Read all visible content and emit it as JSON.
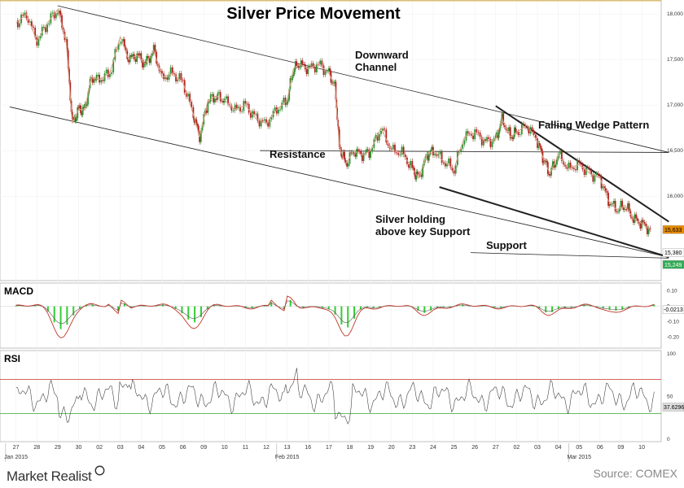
{
  "chart_data": {
    "type": "line",
    "title": "Silver Price Movement",
    "source": "Source: COMEX",
    "brand": "Market Realist",
    "colors": {
      "price": "#8a4a3a",
      "ma": "#d8a080",
      "candle_up": "#2f8f2f",
      "candle_down": "#b22222",
      "macd_line": "#c0392b",
      "macd_signal": "#555555",
      "macd_hist": "#33cc33",
      "rsi_line": "#444444",
      "rsi_upper": "#cc3333",
      "rsi_lower": "#33aa33",
      "price_tag": "#e68a00",
      "support_tag": "#33aa55"
    },
    "x_labels": [
      "27",
      "28",
      "29",
      "30",
      "02",
      "03",
      "04",
      "05",
      "06",
      "09",
      "10",
      "11",
      "12",
      "13",
      "16",
      "17",
      "18",
      "19",
      "20",
      "23",
      "24",
      "25",
      "26",
      "27",
      "02",
      "03",
      "04",
      "05",
      "06",
      "09",
      "10"
    ],
    "month_labels": [
      {
        "text": "Jan 2015",
        "index": 0
      },
      {
        "text": "Feb 2015",
        "index": 13
      },
      {
        "text": "Mar 2015",
        "index": 27
      }
    ],
    "price": {
      "ylim": [
        15100,
        18100
      ],
      "yticks": [
        "18,000",
        "17,500",
        "17,000",
        "16,500",
        "16,000"
      ],
      "ytick_values": [
        18000,
        17500,
        17000,
        16500,
        16000
      ],
      "last_tags": [
        "15,633",
        "15,380",
        "15,249"
      ],
      "series": [
        {
          "x": 0,
          "y": 17900
        },
        {
          "x": 0.5,
          "y": 18000
        },
        {
          "x": 1,
          "y": 17700
        },
        {
          "x": 1.5,
          "y": 17900
        },
        {
          "x": 2,
          "y": 18050
        },
        {
          "x": 2.4,
          "y": 17700
        },
        {
          "x": 2.7,
          "y": 16800
        },
        {
          "x": 3,
          "y": 16950
        },
        {
          "x": 3.3,
          "y": 16950
        },
        {
          "x": 3.6,
          "y": 17300
        },
        {
          "x": 4,
          "y": 17280
        },
        {
          "x": 4.5,
          "y": 17350
        },
        {
          "x": 5,
          "y": 17750
        },
        {
          "x": 5.4,
          "y": 17500
        },
        {
          "x": 5.8,
          "y": 17550
        },
        {
          "x": 6.2,
          "y": 17450
        },
        {
          "x": 6.6,
          "y": 17600
        },
        {
          "x": 7,
          "y": 17300
        },
        {
          "x": 7.5,
          "y": 17350
        },
        {
          "x": 8,
          "y": 17250
        },
        {
          "x": 8.5,
          "y": 16900
        },
        {
          "x": 8.8,
          "y": 16650
        },
        {
          "x": 9.2,
          "y": 17050
        },
        {
          "x": 9.6,
          "y": 17100
        },
        {
          "x": 10,
          "y": 17050
        },
        {
          "x": 10.5,
          "y": 16950
        },
        {
          "x": 11,
          "y": 17000
        },
        {
          "x": 11.5,
          "y": 16850
        },
        {
          "x": 12,
          "y": 16800
        },
        {
          "x": 12.5,
          "y": 16950
        },
        {
          "x": 13,
          "y": 17050
        },
        {
          "x": 13.3,
          "y": 17400
        },
        {
          "x": 13.6,
          "y": 17450
        },
        {
          "x": 14,
          "y": 17400
        },
        {
          "x": 14.5,
          "y": 17450
        },
        {
          "x": 15,
          "y": 17350
        },
        {
          "x": 15.3,
          "y": 17200
        },
        {
          "x": 15.5,
          "y": 16550
        },
        {
          "x": 15.8,
          "y": 16350
        },
        {
          "x": 16.2,
          "y": 16500
        },
        {
          "x": 16.6,
          "y": 16450
        },
        {
          "x": 17,
          "y": 16500
        },
        {
          "x": 17.5,
          "y": 16750
        },
        {
          "x": 18,
          "y": 16500
        },
        {
          "x": 18.5,
          "y": 16480
        },
        {
          "x": 19,
          "y": 16300
        },
        {
          "x": 19.3,
          "y": 16200
        },
        {
          "x": 19.7,
          "y": 16450
        },
        {
          "x": 20,
          "y": 16500
        },
        {
          "x": 20.5,
          "y": 16380
        },
        {
          "x": 21,
          "y": 16300
        },
        {
          "x": 21.5,
          "y": 16650
        },
        {
          "x": 22,
          "y": 16700
        },
        {
          "x": 22.5,
          "y": 16600
        },
        {
          "x": 23,
          "y": 16620
        },
        {
          "x": 23.3,
          "y": 16850
        },
        {
          "x": 23.7,
          "y": 16650
        },
        {
          "x": 24,
          "y": 16700
        },
        {
          "x": 24.5,
          "y": 16780
        },
        {
          "x": 25,
          "y": 16600
        },
        {
          "x": 25.3,
          "y": 16400
        },
        {
          "x": 25.6,
          "y": 16250
        },
        {
          "x": 26,
          "y": 16450
        },
        {
          "x": 26.5,
          "y": 16300
        },
        {
          "x": 27,
          "y": 16350
        },
        {
          "x": 27.5,
          "y": 16250
        },
        {
          "x": 28,
          "y": 16200
        },
        {
          "x": 28.4,
          "y": 15950
        },
        {
          "x": 28.8,
          "y": 15850
        },
        {
          "x": 29.2,
          "y": 15900
        },
        {
          "x": 29.6,
          "y": 15750
        },
        {
          "x": 30,
          "y": 15700
        },
        {
          "x": 30.4,
          "y": 15633
        }
      ],
      "annotations": [
        {
          "text": "Downward\nChannel"
        },
        {
          "text": "Falling Wedge Pattern"
        },
        {
          "text": "Resistance"
        },
        {
          "text": "Silver holding\nabove key Support"
        },
        {
          "text": "Support"
        }
      ]
    },
    "macd": {
      "label": "MACD",
      "yticks": [
        "0.10",
        "0",
        "-0.10",
        "-0.20"
      ],
      "ytick_values": [
        0.1,
        0,
        -0.1,
        -0.2
      ],
      "ylim": [
        -0.26,
        0.14
      ],
      "last_tag": "-0.0213"
    },
    "rsi": {
      "label": "RSI",
      "yticks": [
        "100",
        "50",
        "0"
      ],
      "ytick_values": [
        100,
        50,
        0
      ],
      "ylim": [
        0,
        100
      ],
      "upper": 70,
      "lower": 30,
      "last_tag": "37.6296"
    }
  }
}
